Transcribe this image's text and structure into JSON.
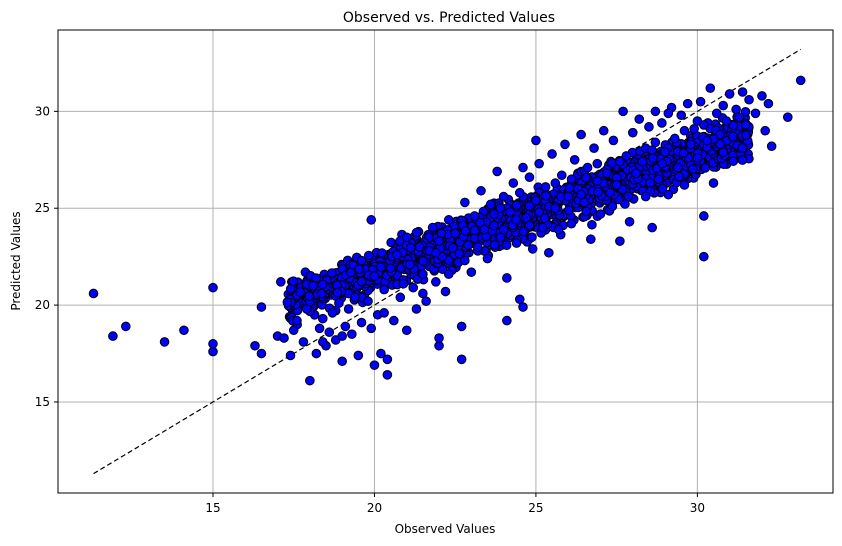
{
  "chart_data": {
    "type": "scatter",
    "title": "Observed vs. Predicted Values",
    "xlabel": "Observed Values",
    "ylabel": "Predicted Values",
    "xlim": [
      10.2,
      34.2
    ],
    "ylim": [
      10.3,
      34.2
    ],
    "xticks": [
      15,
      20,
      25,
      30
    ],
    "yticks": [
      15,
      20,
      25,
      30
    ],
    "xtick_labels": [
      "15",
      "20",
      "25",
      "30"
    ],
    "ytick_labels": [
      "15",
      "20",
      "25",
      "30"
    ],
    "grid": true,
    "point_color": "#0000ff",
    "point_edge_color": "#000000",
    "reference_line": {
      "style": "dashed",
      "color": "#000000",
      "from": [
        11.3,
        11.3
      ],
      "to": [
        33.2,
        33.2
      ]
    },
    "series": [
      {
        "points": [
          [
            11.3,
            20.6
          ],
          [
            11.9,
            18.4
          ],
          [
            12.3,
            18.9
          ],
          [
            13.5,
            18.1
          ],
          [
            14.1,
            18.7
          ],
          [
            15.0,
            20.9
          ],
          [
            15.0,
            17.6
          ],
          [
            15.0,
            18.0
          ],
          [
            16.3,
            17.9
          ],
          [
            16.5,
            17.5
          ],
          [
            16.5,
            19.9
          ],
          [
            17.1,
            21.2
          ],
          [
            17.0,
            18.4
          ],
          [
            17.2,
            18.3
          ],
          [
            17.4,
            17.4
          ],
          [
            17.5,
            18.7
          ],
          [
            17.6,
            19.2
          ],
          [
            17.8,
            18.1
          ],
          [
            17.9,
            19.8
          ],
          [
            18.0,
            16.1
          ],
          [
            18.1,
            21.0
          ],
          [
            18.2,
            17.5
          ],
          [
            18.3,
            18.8
          ],
          [
            18.4,
            19.3
          ],
          [
            18.5,
            17.9
          ],
          [
            18.6,
            18.6
          ],
          [
            18.7,
            19.6
          ],
          [
            18.8,
            18.2
          ],
          [
            18.9,
            20.1
          ],
          [
            19.0,
            17.1
          ],
          [
            19.1,
            18.9
          ],
          [
            19.2,
            19.8
          ],
          [
            19.3,
            18.5
          ],
          [
            19.4,
            20.4
          ],
          [
            19.5,
            17.4
          ],
          [
            19.6,
            19.1
          ],
          [
            19.6,
            22.3
          ],
          [
            19.8,
            20.2
          ],
          [
            19.9,
            18.8
          ],
          [
            19.9,
            24.4
          ],
          [
            20.0,
            21.5
          ],
          [
            20.0,
            16.9
          ],
          [
            20.1,
            19.5
          ],
          [
            20.2,
            17.5
          ],
          [
            20.3,
            20.8
          ],
          [
            20.4,
            16.4
          ],
          [
            20.4,
            17.2
          ],
          [
            20.5,
            21.9
          ],
          [
            20.6,
            19.2
          ],
          [
            20.7,
            22.6
          ],
          [
            20.8,
            20.4
          ],
          [
            20.9,
            21.3
          ],
          [
            21.0,
            18.7
          ],
          [
            21.0,
            23.5
          ],
          [
            21.1,
            22.1
          ],
          [
            21.2,
            20.9
          ],
          [
            21.3,
            19.8
          ],
          [
            21.4,
            23.0
          ],
          [
            21.5,
            21.6
          ],
          [
            21.6,
            20.2
          ],
          [
            21.7,
            22.8
          ],
          [
            21.8,
            24.0
          ],
          [
            21.9,
            21.2
          ],
          [
            22.0,
            23.3
          ],
          [
            22.0,
            17.9
          ],
          [
            22.0,
            18.3
          ],
          [
            22.1,
            22.5
          ],
          [
            22.2,
            20.7
          ],
          [
            22.3,
            24.4
          ],
          [
            22.4,
            21.8
          ],
          [
            22.5,
            23.7
          ],
          [
            22.6,
            22.2
          ],
          [
            22.7,
            17.2
          ],
          [
            22.7,
            18.9
          ],
          [
            22.8,
            25.3
          ],
          [
            22.9,
            23.1
          ],
          [
            23.0,
            21.7
          ],
          [
            23.1,
            24.6
          ],
          [
            23.2,
            22.8
          ],
          [
            23.3,
            25.9
          ],
          [
            23.4,
            23.9
          ],
          [
            23.5,
            22.4
          ],
          [
            23.6,
            25.2
          ],
          [
            23.7,
            24.1
          ],
          [
            23.8,
            26.9
          ],
          [
            23.9,
            23.5
          ],
          [
            24.0,
            25.6
          ],
          [
            24.1,
            21.4
          ],
          [
            24.1,
            19.2
          ],
          [
            24.2,
            24.8
          ],
          [
            24.3,
            26.3
          ],
          [
            24.4,
            23.2
          ],
          [
            24.5,
            25.8
          ],
          [
            24.5,
            20.3
          ],
          [
            24.6,
            19.9
          ],
          [
            24.6,
            27.1
          ],
          [
            24.7,
            24.5
          ],
          [
            24.8,
            26.6
          ],
          [
            24.9,
            22.9
          ],
          [
            25.0,
            25.4
          ],
          [
            25.0,
            28.5
          ],
          [
            25.1,
            27.3
          ],
          [
            25.2,
            24.0
          ],
          [
            25.3,
            26.1
          ],
          [
            25.4,
            22.7
          ],
          [
            25.5,
            27.8
          ],
          [
            25.6,
            25.0
          ],
          [
            25.7,
            23.9
          ],
          [
            25.8,
            26.7
          ],
          [
            25.9,
            28.3
          ],
          [
            26.0,
            25.6
          ],
          [
            26.1,
            24.2
          ],
          [
            26.2,
            27.5
          ],
          [
            26.3,
            26.0
          ],
          [
            26.4,
            28.8
          ],
          [
            26.5,
            25.3
          ],
          [
            26.6,
            27.1
          ],
          [
            26.7,
            23.4
          ],
          [
            26.8,
            28.1
          ],
          [
            26.9,
            26.4
          ],
          [
            27.0,
            24.7
          ],
          [
            27.1,
            29.0
          ],
          [
            27.2,
            27.0
          ],
          [
            27.3,
            25.8
          ],
          [
            27.4,
            28.5
          ],
          [
            27.5,
            26.2
          ],
          [
            27.6,
            23.3
          ],
          [
            27.7,
            30.0
          ],
          [
            27.8,
            27.7
          ],
          [
            27.9,
            24.3
          ],
          [
            28.0,
            28.9
          ],
          [
            28.1,
            26.8
          ],
          [
            28.2,
            29.6
          ],
          [
            28.3,
            27.4
          ],
          [
            28.4,
            25.6
          ],
          [
            28.5,
            29.2
          ],
          [
            28.6,
            24.0
          ],
          [
            28.6,
            28.0
          ],
          [
            28.7,
            30.0
          ],
          [
            28.8,
            26.5
          ],
          [
            28.9,
            29.4
          ],
          [
            29.0,
            27.9
          ],
          [
            29.1,
            25.7
          ],
          [
            29.2,
            30.2
          ],
          [
            29.3,
            28.6
          ],
          [
            29.4,
            27.1
          ],
          [
            29.5,
            29.8
          ],
          [
            29.6,
            26.2
          ],
          [
            29.7,
            30.4
          ],
          [
            29.8,
            28.3
          ],
          [
            29.9,
            29.1
          ],
          [
            30.0,
            27.6
          ],
          [
            30.1,
            30.5
          ],
          [
            30.2,
            29.3
          ],
          [
            30.2,
            24.6
          ],
          [
            30.2,
            22.5
          ],
          [
            30.3,
            28.5
          ],
          [
            30.4,
            31.2
          ],
          [
            30.5,
            26.3
          ],
          [
            30.6,
            29.9
          ],
          [
            30.7,
            28.8
          ],
          [
            30.8,
            30.3
          ],
          [
            30.9,
            29.5
          ],
          [
            31.0,
            30.9
          ],
          [
            31.1,
            28.7
          ],
          [
            31.2,
            30.1
          ],
          [
            31.3,
            29.7
          ],
          [
            31.4,
            31.0
          ],
          [
            31.5,
            29.3
          ],
          [
            31.6,
            30.6
          ],
          [
            31.8,
            29.9
          ],
          [
            32.0,
            30.8
          ],
          [
            32.1,
            29.0
          ],
          [
            32.2,
            30.4
          ],
          [
            32.3,
            28.2
          ],
          [
            32.8,
            29.7
          ],
          [
            33.2,
            31.6
          ],
          [
            26.4,
            25.7
          ],
          [
            23.2,
            23.0
          ],
          [
            21.5,
            20.6
          ],
          [
            19.0,
            18.4
          ],
          [
            27.2,
            26.8
          ],
          [
            25.1,
            24.8
          ],
          [
            22.8,
            22.3
          ],
          [
            24.0,
            23.9
          ],
          [
            20.9,
            21.1
          ],
          [
            28.7,
            28.4
          ],
          [
            29.6,
            29.0
          ],
          [
            26.9,
            27.3
          ],
          [
            23.7,
            24.7
          ],
          [
            22.3,
            21.6
          ],
          [
            18.4,
            18.1
          ],
          [
            20.3,
            19.6
          ],
          [
            21.9,
            22.7
          ],
          [
            24.8,
            24.1
          ],
          [
            27.6,
            27.4
          ],
          [
            29.1,
            29.9
          ],
          [
            30.0,
            29.5
          ],
          [
            25.6,
            26.3
          ],
          [
            23.9,
            25.0
          ]
        ]
      }
    ]
  }
}
